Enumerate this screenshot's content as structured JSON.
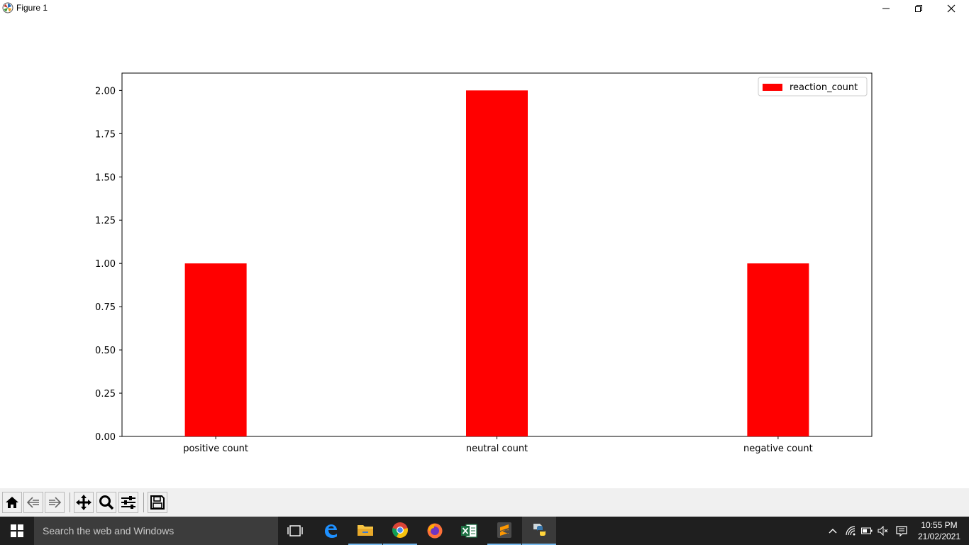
{
  "window": {
    "title": "Figure 1",
    "minimize_icon": "minimize-icon",
    "restore_icon": "restore-icon",
    "close_icon": "close-icon"
  },
  "chart_data": {
    "type": "bar",
    "categories": [
      "positive count",
      "neutral count",
      "negative count"
    ],
    "series": [
      {
        "name": "reaction_count",
        "values": [
          1,
          2,
          1
        ],
        "color": "#ff0000"
      }
    ],
    "title": "",
    "xlabel": "",
    "ylabel": "",
    "ylim": [
      0,
      2.1
    ],
    "yticks": [
      "0.00",
      "0.25",
      "0.50",
      "0.75",
      "1.00",
      "1.25",
      "1.50",
      "1.75",
      "2.00"
    ],
    "grid": false,
    "legend": "top-right"
  },
  "toolbar": {
    "buttons": [
      {
        "name": "home-button",
        "icon": "home-icon"
      },
      {
        "name": "back-button",
        "icon": "arrow-left-icon"
      },
      {
        "name": "forward-button",
        "icon": "arrow-right-icon"
      },
      {
        "name": "pan-button",
        "icon": "move-icon"
      },
      {
        "name": "zoom-button",
        "icon": "magnifier-icon"
      },
      {
        "name": "configure-subplots-button",
        "icon": "sliders-icon"
      },
      {
        "name": "save-button",
        "icon": "floppy-disk-icon"
      }
    ]
  },
  "taskbar": {
    "search_placeholder": "Search the web and Windows",
    "apps": [
      {
        "name": "task-view",
        "icon": "task-view-icon"
      },
      {
        "name": "edge",
        "icon": "edge-icon"
      },
      {
        "name": "file-explorer",
        "icon": "folder-icon"
      },
      {
        "name": "chrome",
        "icon": "chrome-icon"
      },
      {
        "name": "firefox",
        "icon": "firefox-icon"
      },
      {
        "name": "excel",
        "icon": "excel-icon"
      },
      {
        "name": "sublime-text",
        "icon": "sublime-icon"
      },
      {
        "name": "python",
        "icon": "python-icon"
      }
    ],
    "clock_time": "10:55 PM",
    "clock_date": "21/02/2021"
  }
}
